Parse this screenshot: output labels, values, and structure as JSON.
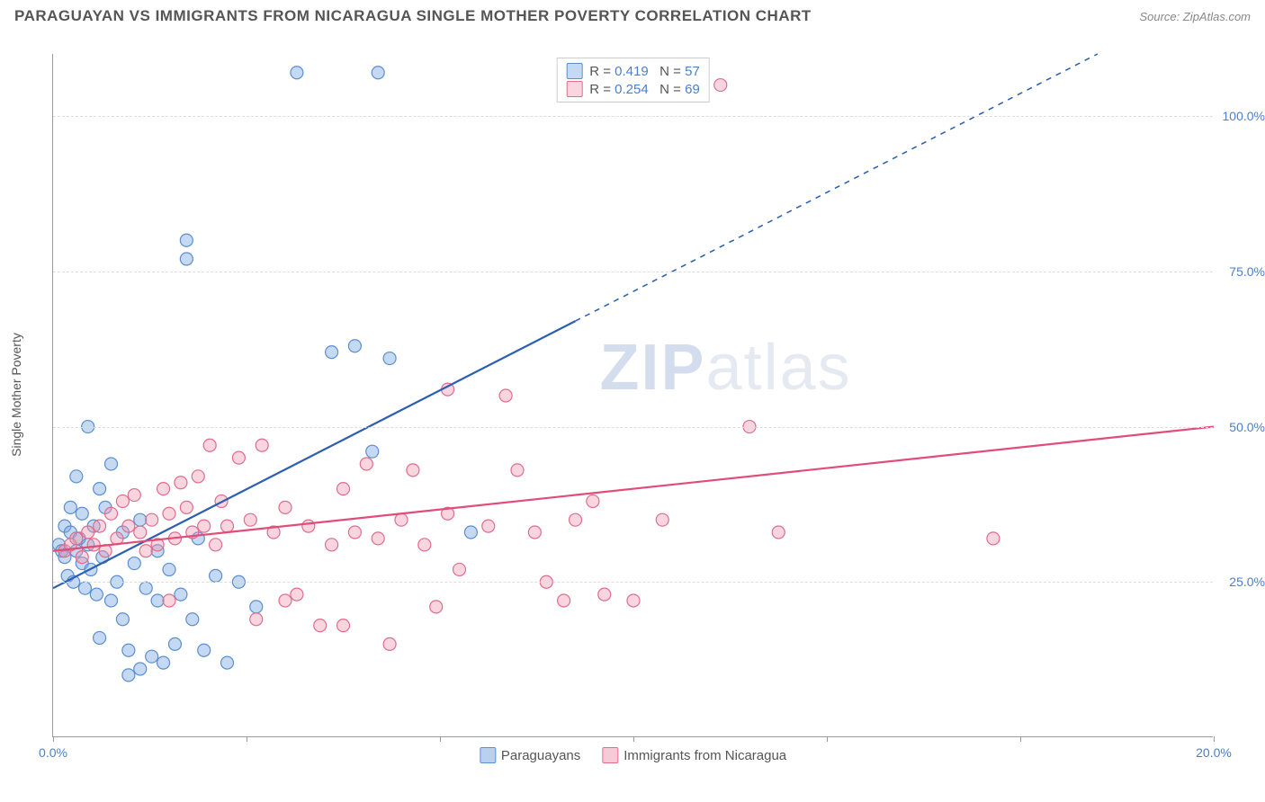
{
  "header": {
    "title": "PARAGUAYAN VS IMMIGRANTS FROM NICARAGUA SINGLE MOTHER POVERTY CORRELATION CHART",
    "source": "Source: ZipAtlas.com"
  },
  "chart": {
    "type": "scatter",
    "ylabel": "Single Mother Poverty",
    "xlim": [
      0,
      20
    ],
    "ylim": [
      0,
      110
    ],
    "yticks": [
      {
        "value": 25,
        "label": "25.0%"
      },
      {
        "value": 50,
        "label": "50.0%"
      },
      {
        "value": 75,
        "label": "75.0%"
      },
      {
        "value": 100,
        "label": "100.0%"
      }
    ],
    "xticks": [
      {
        "value": 0,
        "label": "0.0%"
      },
      {
        "value": 3.33,
        "label": ""
      },
      {
        "value": 6.67,
        "label": ""
      },
      {
        "value": 10,
        "label": ""
      },
      {
        "value": 13.33,
        "label": ""
      },
      {
        "value": 16.67,
        "label": ""
      },
      {
        "value": 20,
        "label": "20.0%"
      }
    ],
    "background_color": "#ffffff",
    "grid_color": "#dddddd",
    "axis_color": "#999999",
    "tick_label_color": "#4a7fc9",
    "series": [
      {
        "name": "Paraguayans",
        "color_fill": "rgba(127,171,226,0.45)",
        "color_stroke": "#5b8fd0",
        "marker_radius": 7,
        "R": 0.419,
        "N": 57,
        "trendline": {
          "x1": 0,
          "y1": 24,
          "x2": 9,
          "y2": 67,
          "x2_dash": 18,
          "y2_dash": 110,
          "color": "#2d5fb0",
          "width": 2.2
        },
        "points": [
          [
            0.1,
            31
          ],
          [
            0.15,
            30
          ],
          [
            0.2,
            34
          ],
          [
            0.2,
            29
          ],
          [
            0.25,
            26
          ],
          [
            0.3,
            33
          ],
          [
            0.3,
            37
          ],
          [
            0.35,
            25
          ],
          [
            0.4,
            30
          ],
          [
            0.4,
            42
          ],
          [
            0.45,
            32
          ],
          [
            0.5,
            28
          ],
          [
            0.5,
            36
          ],
          [
            0.55,
            24
          ],
          [
            0.6,
            50
          ],
          [
            0.6,
            31
          ],
          [
            0.65,
            27
          ],
          [
            0.7,
            34
          ],
          [
            0.75,
            23
          ],
          [
            0.8,
            40
          ],
          [
            0.85,
            29
          ],
          [
            0.9,
            37
          ],
          [
            1.0,
            22
          ],
          [
            1.0,
            44
          ],
          [
            1.1,
            25
          ],
          [
            1.2,
            33
          ],
          [
            1.2,
            19
          ],
          [
            1.3,
            14
          ],
          [
            1.4,
            28
          ],
          [
            1.5,
            11
          ],
          [
            1.5,
            35
          ],
          [
            1.6,
            24
          ],
          [
            1.7,
            13
          ],
          [
            1.8,
            30
          ],
          [
            1.8,
            22
          ],
          [
            1.9,
            12
          ],
          [
            2.0,
            27
          ],
          [
            2.1,
            15
          ],
          [
            2.2,
            23
          ],
          [
            2.4,
            19
          ],
          [
            2.5,
            32
          ],
          [
            2.6,
            14
          ],
          [
            2.8,
            26
          ],
          [
            3.0,
            12
          ],
          [
            3.2,
            25
          ],
          [
            3.5,
            21
          ],
          [
            0.8,
            16
          ],
          [
            1.3,
            10
          ],
          [
            4.2,
            107
          ],
          [
            5.6,
            107
          ],
          [
            2.3,
            80
          ],
          [
            2.3,
            77
          ],
          [
            4.8,
            62
          ],
          [
            5.2,
            63
          ],
          [
            5.8,
            61
          ],
          [
            5.5,
            46
          ],
          [
            7.2,
            33
          ]
        ]
      },
      {
        "name": "Immigrants from Nicaragua",
        "color_fill": "rgba(240,150,175,0.40)",
        "color_stroke": "#e06d8c",
        "marker_radius": 7,
        "R": 0.254,
        "N": 69,
        "trendline": {
          "x1": 0,
          "y1": 30,
          "x2": 20,
          "y2": 50,
          "color": "#e04d78",
          "width": 2.2
        },
        "points": [
          [
            0.2,
            30
          ],
          [
            0.3,
            31
          ],
          [
            0.4,
            32
          ],
          [
            0.5,
            29
          ],
          [
            0.6,
            33
          ],
          [
            0.7,
            31
          ],
          [
            0.8,
            34
          ],
          [
            0.9,
            30
          ],
          [
            1.0,
            36
          ],
          [
            1.1,
            32
          ],
          [
            1.2,
            38
          ],
          [
            1.3,
            34
          ],
          [
            1.4,
            39
          ],
          [
            1.5,
            33
          ],
          [
            1.6,
            30
          ],
          [
            1.7,
            35
          ],
          [
            1.8,
            31
          ],
          [
            1.9,
            40
          ],
          [
            2.0,
            36
          ],
          [
            2.1,
            32
          ],
          [
            2.2,
            41
          ],
          [
            2.3,
            37
          ],
          [
            2.4,
            33
          ],
          [
            2.5,
            42
          ],
          [
            2.6,
            34
          ],
          [
            2.7,
            47
          ],
          [
            2.8,
            31
          ],
          [
            2.9,
            38
          ],
          [
            3.0,
            34
          ],
          [
            3.2,
            45
          ],
          [
            3.4,
            35
          ],
          [
            3.6,
            47
          ],
          [
            3.8,
            33
          ],
          [
            4.0,
            37
          ],
          [
            4.2,
            23
          ],
          [
            4.4,
            34
          ],
          [
            4.6,
            18
          ],
          [
            4.8,
            31
          ],
          [
            5.0,
            40
          ],
          [
            5.2,
            33
          ],
          [
            5.4,
            44
          ],
          [
            5.6,
            32
          ],
          [
            5.8,
            15
          ],
          [
            6.0,
            35
          ],
          [
            6.2,
            43
          ],
          [
            6.4,
            31
          ],
          [
            6.6,
            21
          ],
          [
            6.8,
            36
          ],
          [
            7.0,
            27
          ],
          [
            7.5,
            34
          ],
          [
            7.8,
            55
          ],
          [
            8.0,
            43
          ],
          [
            8.3,
            33
          ],
          [
            8.5,
            25
          ],
          [
            8.8,
            22
          ],
          [
            9.0,
            35
          ],
          [
            9.3,
            38
          ],
          [
            9.5,
            23
          ],
          [
            10.0,
            22
          ],
          [
            10.5,
            35
          ],
          [
            12.0,
            50
          ],
          [
            12.5,
            33
          ],
          [
            16.2,
            32
          ],
          [
            6.8,
            56
          ],
          [
            11.5,
            105
          ],
          [
            5.0,
            18
          ],
          [
            3.5,
            19
          ],
          [
            4.0,
            22
          ],
          [
            2.0,
            22
          ]
        ]
      }
    ],
    "legend_bottom": [
      {
        "label": "Paraguayans",
        "fill": "rgba(127,171,226,0.55)",
        "stroke": "#5b8fd0"
      },
      {
        "label": "Immigrants from Nicaragua",
        "fill": "rgba(240,150,175,0.50)",
        "stroke": "#e06d8c"
      }
    ],
    "watermark": {
      "text_bold": "ZIP",
      "text_light": "atlas"
    }
  }
}
